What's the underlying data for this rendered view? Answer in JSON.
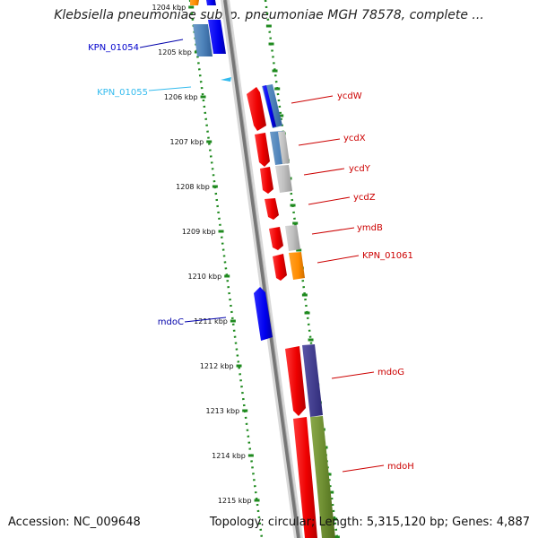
{
  "title": "Klebsiella pneumoniae subsp. pneumoniae MGH 78578, complete ...",
  "footer": {
    "accession": "Accession: NC_009648",
    "summary": "Topology: circular; Length: 5,315,120 bp; Genes: 4,887"
  },
  "ruler": [
    {
      "label": "1204 kbp"
    },
    {
      "label": "1205 kbp"
    },
    {
      "label": "1206 kbp"
    },
    {
      "label": "1207 kbp"
    },
    {
      "label": "1208 kbp"
    },
    {
      "label": "1209 kbp"
    },
    {
      "label": "1210 kbp"
    },
    {
      "label": "1211 kbp"
    },
    {
      "label": "1212 kbp"
    },
    {
      "label": "1213 kbp"
    },
    {
      "label": "1214 kbp"
    },
    {
      "label": "1215 kbp"
    }
  ],
  "genes": [
    {
      "name": "KPN_01054",
      "color": "#0000cc"
    },
    {
      "name": "KPN_01055",
      "color": "#33bbee"
    },
    {
      "name": "ycdW",
      "color": "#cc0000"
    },
    {
      "name": "ycdX",
      "color": "#cc0000"
    },
    {
      "name": "ycdY",
      "color": "#cc0000"
    },
    {
      "name": "ycdZ",
      "color": "#cc0000"
    },
    {
      "name": "ymdB",
      "color": "#cc0000"
    },
    {
      "name": "KPN_01061",
      "color": "#cc0000"
    },
    {
      "name": "mdoC",
      "color": "#0000aa"
    },
    {
      "name": "mdoG",
      "color": "#cc0000"
    },
    {
      "name": "mdoH",
      "color": "#cc0000"
    }
  ]
}
